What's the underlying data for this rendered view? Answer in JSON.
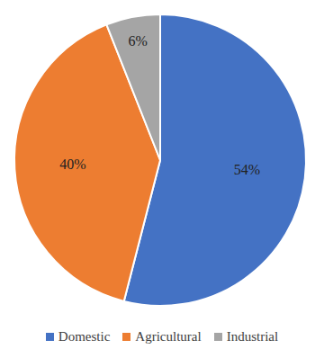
{
  "chart_data": {
    "type": "pie",
    "categories": [
      "Domestic",
      "Agricultural",
      "Industrial"
    ],
    "values": [
      54,
      40,
      6
    ],
    "value_labels": [
      "54%",
      "40%",
      "6%"
    ],
    "colors": [
      "#4472c4",
      "#ed7d31",
      "#a5a5a5"
    ],
    "data_labels": true,
    "legend": "bottom"
  }
}
